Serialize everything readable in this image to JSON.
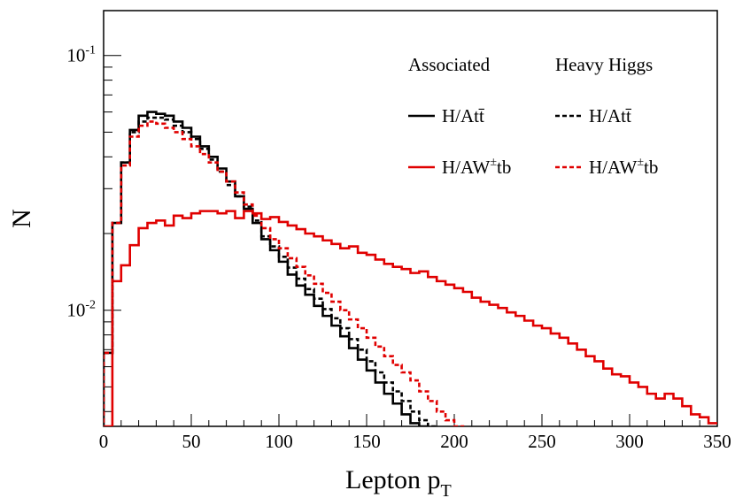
{
  "chart_data": {
    "type": "line",
    "style": "step histogram",
    "xlabel": "Lepton p",
    "xlabel_subscript": "T",
    "ylabel": "N",
    "xlim": [
      0,
      350
    ],
    "ylim": [
      0.0035,
      0.15
    ],
    "yscale": "log",
    "x_ticks": [
      0,
      50,
      100,
      150,
      200,
      250,
      300,
      350
    ],
    "y_ticks": [
      {
        "value": 0.01,
        "base": "10",
        "exp": "-2"
      },
      {
        "value": 0.1,
        "base": "10",
        "exp": "-1"
      }
    ],
    "legend": {
      "placement": "top-right",
      "column_headers": [
        "Associated",
        "Heavy Higgs"
      ],
      "rows": [
        "H/Att̄",
        "H/AW±tb"
      ]
    },
    "bin_width": 5,
    "series": [
      {
        "name": "H/Att̄",
        "group": "Associated",
        "color": "#000000",
        "dash": "solid",
        "values": [
          0.0068,
          0.022,
          0.038,
          0.051,
          0.058,
          0.06,
          0.059,
          0.058,
          0.055,
          0.052,
          0.048,
          0.044,
          0.04,
          0.036,
          0.032,
          0.028,
          0.025,
          0.022,
          0.019,
          0.0172,
          0.0155,
          0.0138,
          0.0125,
          0.0115,
          0.0104,
          0.0095,
          0.0087,
          0.0079,
          0.0071,
          0.0064,
          0.0058,
          0.0052,
          0.0047,
          0.0043,
          0.0039,
          0.0036,
          0.0035,
          0.003,
          0.003,
          0.003,
          0.003,
          0.003,
          0.003,
          0.003,
          0.003,
          0.003,
          0.003,
          0.003,
          0.003,
          0.003,
          0.003,
          0.003,
          0.003,
          0.003,
          0.003,
          0.003,
          0.003,
          0.003,
          0.003,
          0.003,
          0.003,
          0.003,
          0.003,
          0.003,
          0.003,
          0.003,
          0.003,
          0.003,
          0.003,
          0.003
        ]
      },
      {
        "name": "H/AW±tb",
        "group": "Associated",
        "color": "#e00000",
        "dash": "solid",
        "values": [
          0.0035,
          0.013,
          0.015,
          0.018,
          0.021,
          0.022,
          0.0225,
          0.0215,
          0.0235,
          0.023,
          0.024,
          0.0245,
          0.0245,
          0.024,
          0.0245,
          0.023,
          0.0245,
          0.024,
          0.0228,
          0.0232,
          0.0222,
          0.0215,
          0.0208,
          0.02,
          0.0195,
          0.0188,
          0.0182,
          0.0175,
          0.0178,
          0.0168,
          0.0165,
          0.0158,
          0.0152,
          0.0148,
          0.0145,
          0.014,
          0.0142,
          0.0135,
          0.013,
          0.0126,
          0.0122,
          0.0118,
          0.0112,
          0.0108,
          0.0105,
          0.0102,
          0.0098,
          0.0095,
          0.0091,
          0.0087,
          0.0085,
          0.0081,
          0.0078,
          0.0074,
          0.007,
          0.0066,
          0.0063,
          0.0059,
          0.0056,
          0.0055,
          0.0052,
          0.005,
          0.0047,
          0.0045,
          0.0047,
          0.0045,
          0.0042,
          0.0039,
          0.0038,
          0.0036
        ]
      },
      {
        "name": "H/Att̄",
        "group": "Heavy Higgs",
        "color": "#000000",
        "dash": "dashed",
        "values": [
          0.0068,
          0.022,
          0.038,
          0.05,
          0.055,
          0.057,
          0.057,
          0.056,
          0.053,
          0.05,
          0.047,
          0.043,
          0.039,
          0.035,
          0.031,
          0.028,
          0.0255,
          0.0225,
          0.0195,
          0.0178,
          0.0162,
          0.0147,
          0.0133,
          0.0121,
          0.0111,
          0.0101,
          0.0093,
          0.0085,
          0.0077,
          0.007,
          0.0063,
          0.0057,
          0.0052,
          0.0048,
          0.0044,
          0.004,
          0.0037,
          0.0035,
          0.003,
          0.003,
          0.003,
          0.003,
          0.003,
          0.003,
          0.003,
          0.003,
          0.003,
          0.003,
          0.003,
          0.003,
          0.003,
          0.003,
          0.003,
          0.003,
          0.003,
          0.003,
          0.003,
          0.003,
          0.003,
          0.003,
          0.003,
          0.003,
          0.003,
          0.003,
          0.003,
          0.003,
          0.003,
          0.003,
          0.003,
          0.003
        ]
      },
      {
        "name": "H/AW±tb",
        "group": "Heavy Higgs",
        "color": "#e00000",
        "dash": "dashed",
        "values": [
          0.0068,
          0.022,
          0.037,
          0.048,
          0.053,
          0.055,
          0.054,
          0.052,
          0.05,
          0.047,
          0.044,
          0.041,
          0.038,
          0.035,
          0.032,
          0.029,
          0.026,
          0.0235,
          0.021,
          0.019,
          0.0175,
          0.016,
          0.0148,
          0.0137,
          0.0127,
          0.0117,
          0.0108,
          0.01,
          0.0092,
          0.0085,
          0.0078,
          0.0072,
          0.0066,
          0.0061,
          0.0057,
          0.0053,
          0.0048,
          0.0044,
          0.004,
          0.0037,
          0.0035,
          0.003,
          0.003,
          0.003,
          0.003,
          0.003,
          0.003,
          0.003,
          0.003,
          0.003,
          0.003,
          0.003,
          0.003,
          0.003,
          0.003,
          0.003,
          0.003,
          0.003,
          0.003,
          0.003,
          0.003,
          0.003,
          0.003,
          0.003,
          0.003,
          0.003,
          0.003,
          0.003,
          0.003,
          0.003
        ]
      }
    ]
  }
}
